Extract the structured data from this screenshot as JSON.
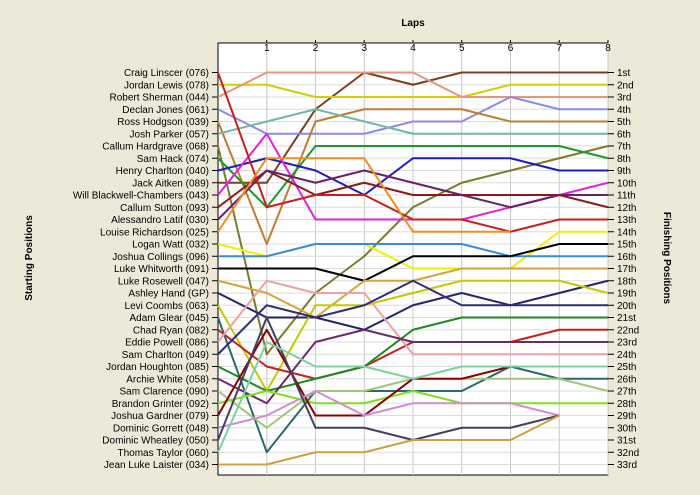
{
  "chart_data": {
    "type": "line",
    "title": "",
    "xlabel": "Laps",
    "ylabel_left": "Starting Positions",
    "ylabel_right": "Finishing Positions",
    "x": [
      0,
      1,
      2,
      3,
      4,
      5,
      6,
      7,
      8
    ],
    "x_tick_labels": [
      "1",
      "2",
      "3",
      "4",
      "5",
      "6",
      "7",
      "8"
    ],
    "grid": true,
    "drivers": [
      "Craig Linscer (076)",
      "Jordan Lewis (078)",
      "Robert Sherman (044)",
      "Declan Jones (061)",
      "Ross Hodgson (039)",
      "Josh Parker (057)",
      "Callum Hardgrave (068)",
      "Sam Hack (074)",
      "Henry Charlton (040)",
      "Jack Aitken (089)",
      "Will Blackwell-Chambers (043)",
      "Callum Sutton (093)",
      "Alessandro Latif (030)",
      "Louise Richardson (025)",
      "Logan Watt (032)",
      "Joshua Collings (096)",
      "Luke Whitworth (091)",
      "Luke Rosewell (047)",
      "Ashley Hand (GP)",
      "Levi Coombs (063)",
      "Adam Glear (045)",
      "Chad Ryan (082)",
      "Eddie Powell (086)",
      "Sam Charlton (049)",
      "Jordan Houghton (085)",
      "Archie White (058)",
      "Sam Clarence (090)",
      "Brandon Grinter (092)",
      "Joshua Gardner (079)",
      "Dominic Gorrett (048)",
      "Dominic Wheatley (050)",
      "Thomas Taylor (060)",
      "Jean Luke Laister (034)"
    ],
    "finishing_labels": [
      "1st",
      "2nd",
      "3rd",
      "4th",
      "5th",
      "6th",
      "7th",
      "8th",
      "9th",
      "10th",
      "11th",
      "12th",
      "13th",
      "14th",
      "15th",
      "16th",
      "17th",
      "18th",
      "19th",
      "20th",
      "21st",
      "22nd",
      "23rd",
      "24th",
      "25th",
      "26th",
      "27th",
      "28th",
      "29th",
      "30th",
      "31st",
      "32nd",
      "33rd"
    ],
    "series": [
      {
        "color": "#7b3f1e",
        "positions": [
          10,
          10,
          4,
          1,
          2,
          1,
          1,
          1,
          1
        ]
      },
      {
        "color": "#d4ce00",
        "positions": [
          2,
          2,
          3,
          3,
          3,
          3,
          2,
          2,
          2
        ]
      },
      {
        "color": "#e7967c",
        "positions": [
          3,
          1,
          1,
          1,
          1,
          3,
          3,
          3,
          3
        ]
      },
      {
        "color": "#8b8be8",
        "positions": [
          4,
          6,
          6,
          6,
          5,
          5,
          3,
          4,
          4
        ]
      },
      {
        "color": "#c27c30",
        "positions": [
          5,
          15,
          5,
          4,
          4,
          4,
          5,
          5,
          5
        ]
      },
      {
        "color": "#73b7a6",
        "positions": [
          6,
          5,
          4,
          5,
          6,
          6,
          6,
          6,
          6
        ]
      },
      {
        "color": "#7b7b2a",
        "positions": [
          7,
          24,
          19,
          16,
          12,
          10,
          9,
          8,
          7
        ]
      },
      {
        "color": "#1a9c28",
        "positions": [
          8,
          12,
          7,
          7,
          7,
          7,
          7,
          7,
          8
        ]
      },
      {
        "color": "#1c1cc4",
        "positions": [
          9,
          8,
          9,
          11,
          8,
          8,
          8,
          9,
          9
        ]
      },
      {
        "color": "#e221e2",
        "positions": [
          11,
          6,
          13,
          13,
          13,
          13,
          12,
          11,
          10
        ]
      },
      {
        "color": "#8b1a1a",
        "positions": [
          12,
          9,
          11,
          10,
          11,
          11,
          11,
          11,
          12
        ]
      },
      {
        "color": "#6b1f6b",
        "positions": [
          13,
          9,
          10,
          9,
          10,
          11,
          12,
          11,
          11
        ]
      },
      {
        "color": "#c81e1e",
        "positions": [
          1,
          12,
          11,
          11,
          13,
          13,
          14,
          13,
          13
        ]
      },
      {
        "color": "#f08c20",
        "positions": [
          14,
          8,
          8,
          8,
          14,
          14,
          14,
          null,
          null
        ]
      },
      {
        "color": "#f0f000",
        "positions": [
          15,
          16,
          15,
          15,
          17,
          17,
          17,
          14,
          14
        ]
      },
      {
        "color": "#3a8ae0",
        "positions": [
          16,
          16,
          15,
          15,
          15,
          15,
          16,
          16,
          16
        ]
      },
      {
        "color": "#000000",
        "positions": [
          17,
          17,
          17,
          18,
          16,
          16,
          16,
          15,
          15
        ]
      },
      {
        "color": "#d5a23a",
        "positions": [
          18,
          19,
          21,
          18,
          18,
          17,
          17,
          17,
          17
        ]
      },
      {
        "color": "#252566",
        "positions": [
          19,
          21,
          21,
          22,
          20,
          19,
          20,
          19,
          18
        ]
      },
      {
        "color": "#c8c800",
        "positions": [
          20,
          27,
          20,
          20,
          19,
          18,
          18,
          18,
          19
        ]
      },
      {
        "color": "#2a6a6a",
        "positions": [
          21,
          32,
          27,
          27,
          27,
          27,
          25,
          26,
          26
        ]
      },
      {
        "color": "#c81e1e",
        "positions": [
          22,
          25,
          26,
          25,
          23,
          23,
          23,
          22,
          22
        ]
      },
      {
        "color": "#f0a0a0",
        "positions": [
          23,
          18,
          19,
          19,
          24,
          24,
          24,
          24,
          24
        ]
      },
      {
        "color": "#2e2e7a",
        "positions": [
          24,
          20,
          21,
          20,
          18,
          20,
          20,
          20,
          20
        ]
      },
      {
        "color": "#1e8a1e",
        "positions": [
          25,
          27,
          26,
          25,
          22,
          21,
          21,
          21,
          21
        ]
      },
      {
        "color": "#6b2a6b",
        "positions": [
          26,
          28,
          23,
          22,
          23,
          23,
          23,
          23,
          23
        ]
      },
      {
        "color": "#a2c47a",
        "positions": [
          27,
          30,
          27,
          27,
          26,
          26,
          26,
          26,
          27
        ]
      },
      {
        "color": "#80e020",
        "positions": [
          28,
          27,
          28,
          28,
          27,
          28,
          28,
          28,
          28
        ]
      },
      {
        "color": "#8b0000",
        "positions": [
          29,
          22,
          29,
          29,
          26,
          26,
          25,
          25,
          25
        ]
      },
      {
        "color": "#d48bd4",
        "positions": [
          30,
          29,
          27,
          29,
          28,
          28,
          28,
          29,
          null
        ]
      },
      {
        "color": "#404060",
        "positions": [
          31,
          21,
          30,
          30,
          31,
          30,
          30,
          29,
          null
        ]
      },
      {
        "color": "#7ed0a0",
        "positions": [
          32,
          23,
          25,
          25,
          26,
          25,
          25,
          25,
          25
        ]
      },
      {
        "color": "#d0a040",
        "positions": [
          33,
          33,
          32,
          32,
          31,
          31,
          31,
          29,
          null
        ]
      }
    ]
  }
}
